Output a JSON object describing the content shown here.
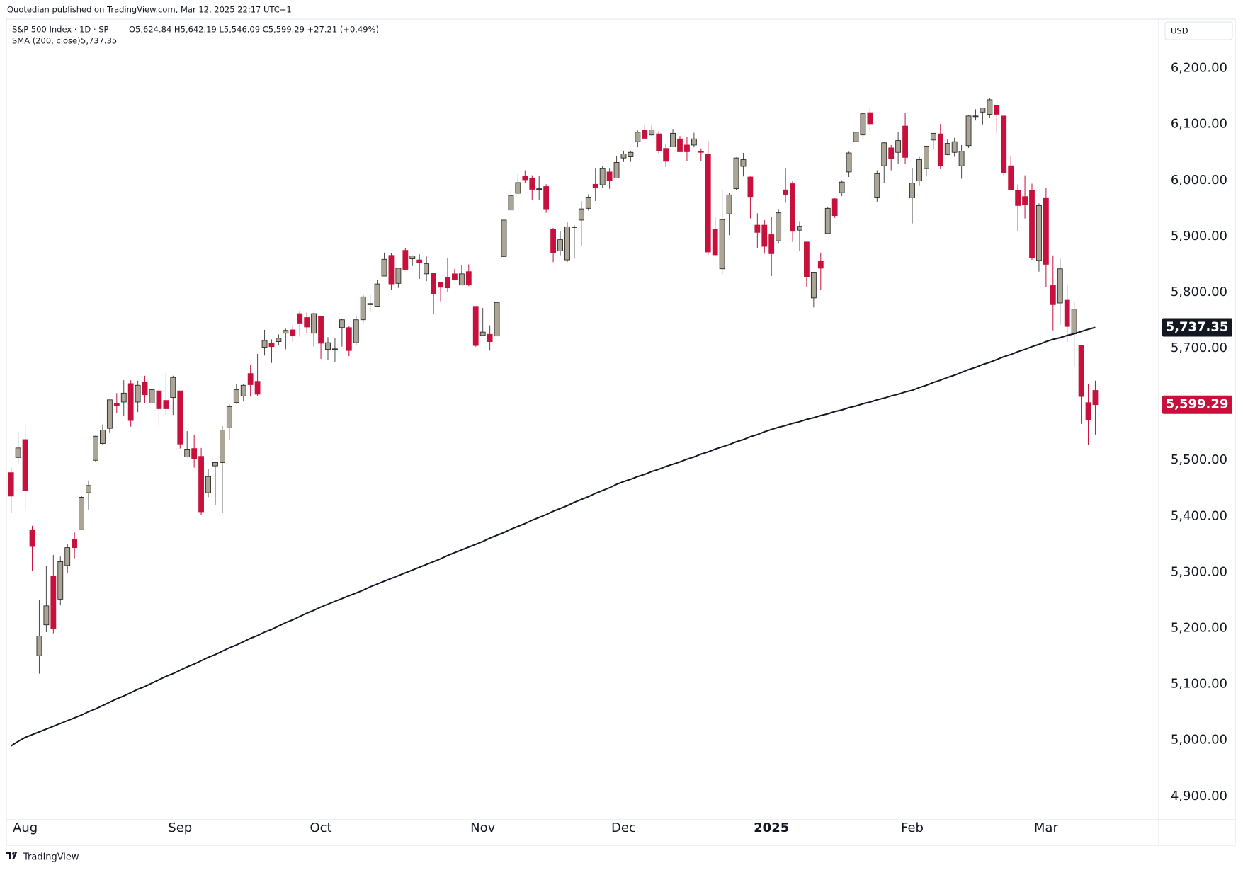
{
  "chart_data": {
    "type": "candlestick",
    "published": "Quotedian published on TradingView.com, Mar 12, 2025 22:17 UTC+1",
    "title": "S&P 500 Index · 1D · SP",
    "ohlc_text": "O5,624.84 H5,642.19 L5,546.09 C5,599.29 +27.21 (+0.49%)",
    "currency": "USD",
    "footer": "TradingView",
    "up_color": "#aba596",
    "down_color": "#c8103c",
    "categories": [
      null,
      null,
      "Aug",
      null,
      null,
      null,
      null,
      null,
      null,
      null,
      null,
      null,
      null,
      null,
      null,
      null,
      null,
      null,
      null,
      null,
      null,
      null,
      null,
      null,
      "Sep",
      null,
      null,
      null,
      null,
      null,
      null,
      null,
      null,
      null,
      null,
      null,
      null,
      null,
      null,
      null,
      null,
      null,
      null,
      null,
      "Oct",
      null,
      null,
      null,
      null,
      null,
      null,
      null,
      null,
      null,
      null,
      null,
      null,
      null,
      null,
      null,
      null,
      null,
      null,
      null,
      null,
      null,
      null,
      "Nov",
      null,
      null,
      null,
      null,
      null,
      null,
      null,
      null,
      null,
      null,
      null,
      null,
      null,
      null,
      null,
      null,
      null,
      null,
      null,
      "Dec",
      null,
      null,
      null,
      null,
      null,
      null,
      null,
      null,
      null,
      null,
      null,
      null,
      null,
      null,
      null,
      null,
      null,
      null,
      null,
      null,
      "2025",
      null,
      null,
      null,
      null,
      null,
      null,
      null,
      null,
      null,
      null,
      null,
      null,
      null,
      null,
      null,
      null,
      null,
      null,
      null,
      "Feb",
      null,
      null,
      null,
      null,
      null,
      null,
      null,
      null,
      null,
      null,
      null,
      null,
      null,
      null,
      null,
      null,
      null,
      null,
      "Mar",
      null,
      null,
      null,
      null,
      null,
      null,
      null
    ],
    "open": [
      5478,
      5505,
      5537,
      5376,
      5151,
      5206,
      5293,
      5252,
      5312,
      5359,
      5376,
      5442,
      5500,
      5530,
      5557,
      5602,
      5604,
      5637,
      5604,
      5640,
      5602,
      5624,
      5607,
      5612,
      5624,
      5506,
      5521,
      5507,
      5442,
      5490,
      5496,
      5558,
      5603,
      5615,
      5655,
      5641,
      5702,
      5709,
      5712,
      5727,
      5733,
      5762,
      5755,
      5727,
      5757,
      5698,
      5698,
      5737,
      5737,
      5710,
      5751,
      5778,
      5775,
      5829,
      5866,
      5816,
      5875,
      5860,
      5858,
      5833,
      5834,
      5818,
      5826,
      5833,
      5813,
      5837,
      5775,
      5723,
      5725,
      5722,
      5864,
      5947,
      5977,
      6008,
      6003,
      5985,
      5989,
      5912,
      5874,
      5858,
      5917,
      5929,
      5950,
      5993,
      5992,
      6015,
      6004,
      6040,
      6042,
      6069,
      6089,
      6081,
      6083,
      6057,
      6060,
      6074,
      6063,
      6063,
      6052,
      6047,
      5912,
      5842,
      5940,
      5985,
      6025,
      6006,
      5920,
      5920,
      5903,
      5892,
      5983,
      5994,
      5911,
      5890,
      5790,
      5856,
      5905,
      5967,
      5978,
      6015,
      6069,
      6081,
      6121,
      5970,
      6026,
      6058,
      6050,
      6097,
      5969,
      5999,
      6021,
      6072,
      6083,
      6046,
      6050,
      6026,
      6062,
      6115,
      6122,
      6118,
      6134,
      6115,
      6026,
      5982,
      5971,
      5982,
      5857,
      5969,
      5812,
      5781,
      5786,
      5726,
      5705,
      5603,
      5624.84
    ],
    "high": [
      5487,
      5551,
      5566,
      5383,
      5250,
      5312,
      5331,
      5328,
      5350,
      5371,
      5436,
      5464,
      5544,
      5564,
      5608,
      5620,
      5643,
      5643,
      5642,
      5651,
      5631,
      5627,
      5656,
      5651,
      5624,
      5552,
      5546,
      5522,
      5485,
      5497,
      5561,
      5600,
      5636,
      5636,
      5670,
      5690,
      5733,
      5716,
      5725,
      5735,
      5741,
      5767,
      5764,
      5763,
      5757,
      5720,
      5719,
      5753,
      5739,
      5757,
      5796,
      5795,
      5822,
      5871,
      5870,
      5843,
      5879,
      5866,
      5868,
      5864,
      5835,
      5818,
      5862,
      5842,
      5848,
      5850,
      5775,
      5772,
      5741,
      5783,
      5936,
      5983,
      6012,
      6018,
      6009,
      6008,
      5993,
      5915,
      5909,
      5925,
      5920,
      5963,
      5975,
      6021,
      6025,
      6021,
      6044,
      6053,
      6053,
      6089,
      6099,
      6099,
      6088,
      6065,
      6092,
      6079,
      6078,
      6085,
      6057,
      6070,
      5935,
      5982,
      5978,
      6041,
      6049,
      6007,
      5941,
      5929,
      5935,
      5949,
      6022,
      6000,
      5927,
      5890,
      5836,
      5871,
      5953,
      5968,
      6000,
      6051,
      6100,
      6119,
      6129,
      6018,
      6069,
      6063,
      6086,
      6121,
      6022,
      6042,
      6062,
      6084,
      6101,
      6073,
      6076,
      6063,
      6116,
      6127,
      6130,
      6147,
      6134,
      6115,
      6044,
      5993,
      6009,
      5994,
      5959,
      5986,
      5866,
      5860,
      5812,
      5783,
      5705,
      5636,
      5642.19
    ],
    "low": [
      5406,
      5493,
      5410,
      5302,
      5119,
      5193,
      5191,
      5241,
      5299,
      5325,
      5376,
      5412,
      5497,
      5528,
      5550,
      5584,
      5580,
      5560,
      5586,
      5602,
      5587,
      5560,
      5581,
      5581,
      5521,
      5505,
      5487,
      5402,
      5434,
      5420,
      5406,
      5536,
      5601,
      5605,
      5614,
      5615,
      5687,
      5674,
      5705,
      5698,
      5712,
      5721,
      5727,
      5703,
      5681,
      5679,
      5675,
      5703,
      5686,
      5705,
      5745,
      5764,
      5775,
      5829,
      5804,
      5808,
      5840,
      5847,
      5824,
      5820,
      5762,
      5784,
      5800,
      5821,
      5813,
      5811,
      5703,
      5723,
      5696,
      5722,
      5864,
      5947,
      5976,
      5995,
      5965,
      5965,
      5942,
      5854,
      5866,
      5854,
      5860,
      5883,
      5946,
      5963,
      5987,
      5985,
      6004,
      6033,
      6033,
      6059,
      6075,
      6079,
      6048,
      6024,
      6060,
      6051,
      6035,
      6059,
      6035,
      5867,
      5866,
      5832,
      5902,
      5983,
      6007,
      5932,
      5879,
      5869,
      5829,
      5888,
      5960,
      5890,
      5874,
      5809,
      5773,
      5805,
      5905,
      5933,
      5972,
      6006,
      6063,
      6074,
      6088,
      5962,
      5995,
      6018,
      6029,
      6030,
      5923,
      5990,
      6007,
      6055,
      6020,
      6045,
      6042,
      6003,
      6058,
      6107,
      6100,
      6111,
      6084,
      6009,
      5983,
      5909,
      5932,
      5858,
      5837,
      5810,
      5732,
      5742,
      5711,
      5667,
      5565,
      5528,
      5546.09
    ],
    "close": [
      5436,
      5522,
      5446,
      5346,
      5186,
      5240,
      5199,
      5319,
      5344,
      5344,
      5434,
      5455,
      5543,
      5554,
      5608,
      5597,
      5620,
      5571,
      5634,
      5617,
      5626,
      5592,
      5592,
      5648,
      5529,
      5520,
      5503,
      5408,
      5471,
      5496,
      5554,
      5596,
      5626,
      5634,
      5635,
      5618,
      5714,
      5703,
      5718,
      5732,
      5722,
      5745,
      5738,
      5762,
      5709,
      5710,
      5699,
      5751,
      5696,
      5751,
      5792,
      5780,
      5815,
      5859,
      5815,
      5843,
      5841,
      5865,
      5853,
      5851,
      5797,
      5809,
      5808,
      5823,
      5833,
      5813,
      5705,
      5729,
      5712,
      5782,
      5929,
      5973,
      5996,
      6001,
      5984,
      5985,
      5949,
      5871,
      5894,
      5917,
      5917,
      5949,
      5970,
      5987,
      6021,
      5999,
      6032,
      6047,
      6050,
      6086,
      6075,
      6090,
      6053,
      6034,
      6084,
      6051,
      6051,
      6074,
      6050,
      5872,
      5867,
      5930,
      5974,
      6040,
      6037,
      5971,
      5907,
      5882,
      5869,
      5942,
      5975,
      5909,
      5918,
      5827,
      5836,
      5843,
      5950,
      5937,
      5997,
      6049,
      6086,
      6119,
      6101,
      6012,
      6067,
      6039,
      6071,
      6041,
      5995,
      6037,
      6061,
      6084,
      6026,
      6066,
      6069,
      6052,
      6115,
      6115,
      6129,
      6144,
      6118,
      6013,
      5983,
      5955,
      5956,
      5862,
      5955,
      5850,
      5778,
      5842,
      5739,
      5770,
      5614,
      5572,
      5599.29
    ],
    "last_label": "5,599.29",
    "overlays": [
      {
        "name": "SMA (200, close)",
        "label": "5,737.35",
        "color": "#131722",
        "values": [
          4990,
          4998,
          5005,
          5010,
          5015,
          5020,
          5025,
          5030,
          5035,
          5040,
          5045,
          5051,
          5056,
          5062,
          5068,
          5074,
          5079,
          5085,
          5091,
          5096,
          5102,
          5108,
          5114,
          5119,
          5125,
          5131,
          5136,
          5142,
          5148,
          5153,
          5159,
          5165,
          5170,
          5176,
          5182,
          5187,
          5193,
          5198,
          5204,
          5210,
          5215,
          5221,
          5227,
          5232,
          5238,
          5243,
          5248,
          5253,
          5258,
          5263,
          5268,
          5274,
          5279,
          5284,
          5289,
          5294,
          5299,
          5304,
          5309,
          5314,
          5319,
          5324,
          5330,
          5335,
          5340,
          5345,
          5350,
          5355,
          5361,
          5366,
          5371,
          5377,
          5382,
          5387,
          5393,
          5398,
          5403,
          5409,
          5414,
          5419,
          5425,
          5430,
          5435,
          5441,
          5446,
          5451,
          5457,
          5462,
          5466,
          5471,
          5475,
          5480,
          5484,
          5489,
          5493,
          5497,
          5502,
          5506,
          5511,
          5515,
          5520,
          5524,
          5528,
          5533,
          5537,
          5542,
          5546,
          5551,
          5555,
          5559,
          5562,
          5566,
          5569,
          5573,
          5576,
          5580,
          5583,
          5587,
          5590,
          5594,
          5597,
          5601,
          5604,
          5608,
          5611,
          5615,
          5618,
          5622,
          5625,
          5630,
          5634,
          5639,
          5643,
          5648,
          5652,
          5657,
          5662,
          5666,
          5671,
          5675,
          5680,
          5685,
          5689,
          5694,
          5698,
          5703,
          5707,
          5712,
          5716,
          5719,
          5723,
          5726,
          5730,
          5734,
          5737.35
        ]
      }
    ],
    "ylim": [
      4858,
      6288
    ],
    "yticks": [
      {
        "value": 4900,
        "label": "4,900.00"
      },
      {
        "value": 5000,
        "label": "5,000.00"
      },
      {
        "value": 5100,
        "label": "5,100.00"
      },
      {
        "value": 5200,
        "label": "5,200.00"
      },
      {
        "value": 5300,
        "label": "5,300.00"
      },
      {
        "value": 5400,
        "label": "5,400.00"
      },
      {
        "value": 5500,
        "label": "5,500.00"
      },
      {
        "value": 5600,
        "label": "5,600.00"
      },
      {
        "value": 5700,
        "label": "5,700.00"
      },
      {
        "value": 5800,
        "label": "5,800.00"
      },
      {
        "value": 5900,
        "label": "5,900.00"
      },
      {
        "value": 6000,
        "label": "6,000.00"
      },
      {
        "value": 6100,
        "label": "6,100.00"
      },
      {
        "value": 6200,
        "label": "6,200.00"
      }
    ],
    "grid": false
  }
}
